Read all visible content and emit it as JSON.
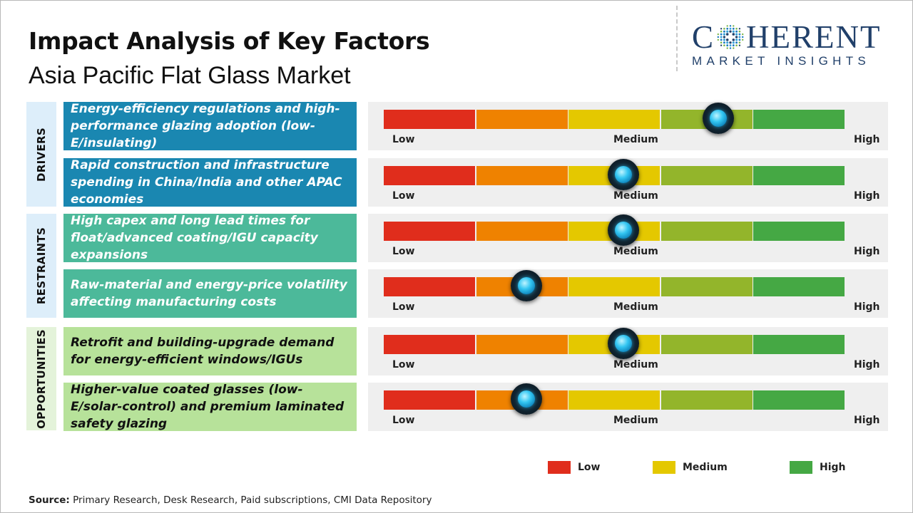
{
  "header": {
    "title": "Impact Analysis of Key Factors",
    "subtitle": "Asia Pacific Flat Glass Market"
  },
  "logo": {
    "word_left": "C",
    "word_right": "HERENT",
    "tagline": "MARKET INSIGHTS"
  },
  "scale_colors": [
    "#e02d1c",
    "#ef8200",
    "#e4c800",
    "#93b52b",
    "#45a844"
  ],
  "scale_labels": {
    "low": "Low",
    "medium": "Medium",
    "high": "High"
  },
  "categories": [
    {
      "label": "DRIVERS",
      "bg": "#ddeefa"
    },
    {
      "label": "RESTRAINTS",
      "bg": "#ddeefa"
    },
    {
      "label": "OPPORTUNITIES",
      "bg": "#e4f3da"
    }
  ],
  "factors": [
    {
      "text": "Energy-efficiency regulations and high-performance glazing adoption (low-E/insulating)",
      "impact": 0.725,
      "bg": "#1a87b1",
      "fg": "#ffffff"
    },
    {
      "text": "Rapid construction and infrastructure spending in China/India and other APAC economies",
      "impact": 0.52,
      "bg": "#1a87b1",
      "fg": "#ffffff"
    },
    {
      "text": "High capex and long lead times for float/advanced coating/IGU capacity expansions",
      "impact": 0.52,
      "bg": "#4cb99a",
      "fg": "#ffffff"
    },
    {
      "text": "Raw-material and energy-price volatility affecting manufacturing costs",
      "impact": 0.31,
      "bg": "#4cb99a",
      "fg": "#ffffff"
    },
    {
      "text": "Retrofit and building-upgrade demand for energy-efficient windows/IGUs",
      "impact": 0.52,
      "bg": "#b7e29a",
      "fg": "#111111"
    },
    {
      "text": "Higher-value coated glasses (low-E/solar-control) and premium laminated safety glazing",
      "impact": 0.31,
      "bg": "#b7e29a",
      "fg": "#111111"
    }
  ],
  "legend": [
    {
      "label": "Low",
      "color": "#e02d1c"
    },
    {
      "label": "Medium",
      "color": "#e4c800"
    },
    {
      "label": "High",
      "color": "#45a844"
    }
  ],
  "source": {
    "label": "Source:",
    "text": " Primary Research, Desk Research, Paid subscriptions, CMI Data Repository"
  }
}
